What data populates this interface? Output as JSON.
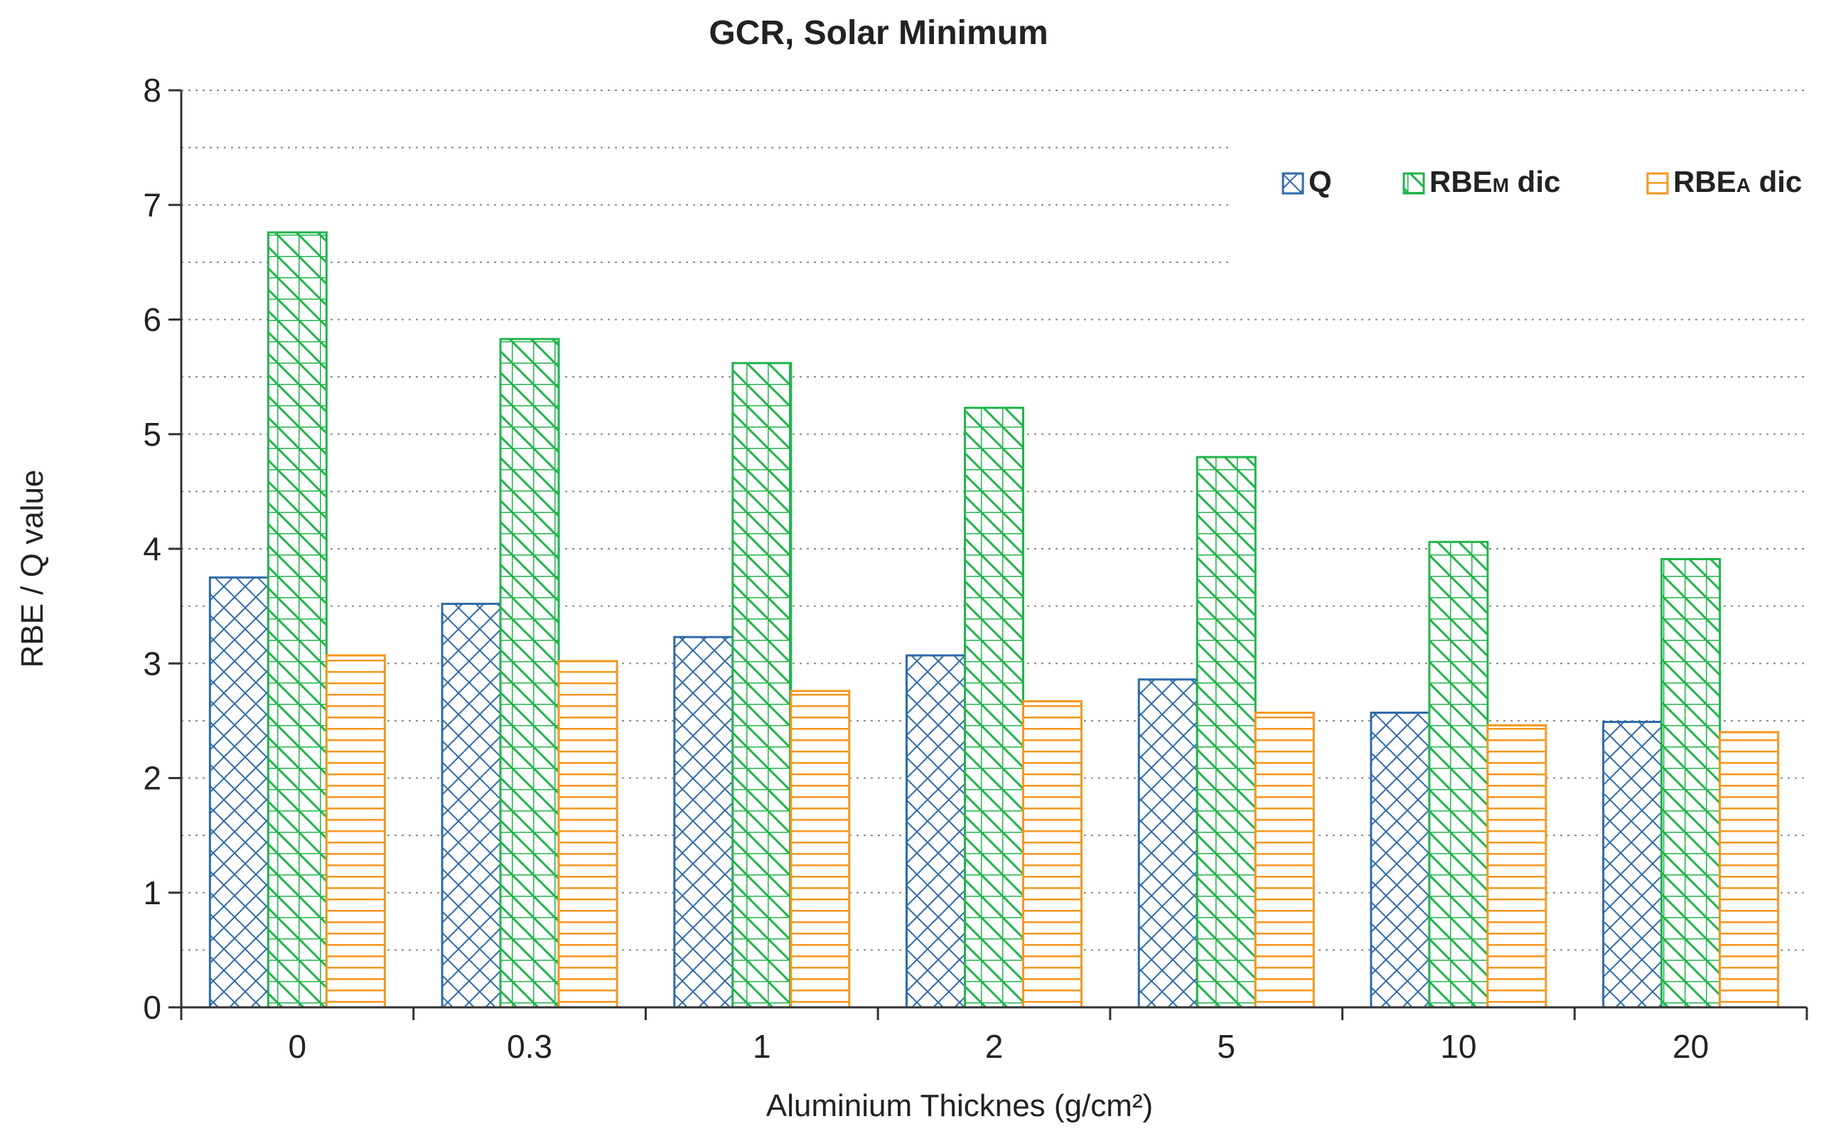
{
  "chart_data": {
    "type": "bar",
    "title": "GCR, Solar Minimum",
    "xlabel": "Aluminium Thicknes (g/cm²)",
    "ylabel": "RBE / Q value",
    "ylim": [
      0,
      8
    ],
    "yticks": [
      "0",
      "1",
      "2",
      "3",
      "4",
      "5",
      "6",
      "7",
      "8"
    ],
    "categories": [
      "0",
      "0.3",
      "1",
      "2",
      "5",
      "10",
      "20"
    ],
    "grid": true,
    "legend_position": "top-right",
    "series": [
      {
        "name": "Q",
        "label_main": "Q",
        "label_sub": "",
        "label_tail": "",
        "color": "#2e6aa8",
        "pattern": "crosshatch-diagonal",
        "values": [
          3.75,
          3.52,
          3.23,
          3.07,
          2.86,
          2.57,
          2.49
        ]
      },
      {
        "name": "RBEM dic",
        "label_main": "RBE",
        "label_sub": "M",
        "label_tail": " dic",
        "color": "#21b44b",
        "pattern": "grid-diagonal",
        "values": [
          6.76,
          5.83,
          5.62,
          5.23,
          4.8,
          4.06,
          3.91
        ]
      },
      {
        "name": "RBEA dic",
        "label_main": "RBE",
        "label_sub": "A",
        "label_tail": " dic",
        "color": "#f5961e",
        "pattern": "horizontal-lines",
        "values": [
          3.07,
          3.02,
          2.76,
          2.67,
          2.57,
          2.46,
          2.4
        ]
      }
    ]
  }
}
